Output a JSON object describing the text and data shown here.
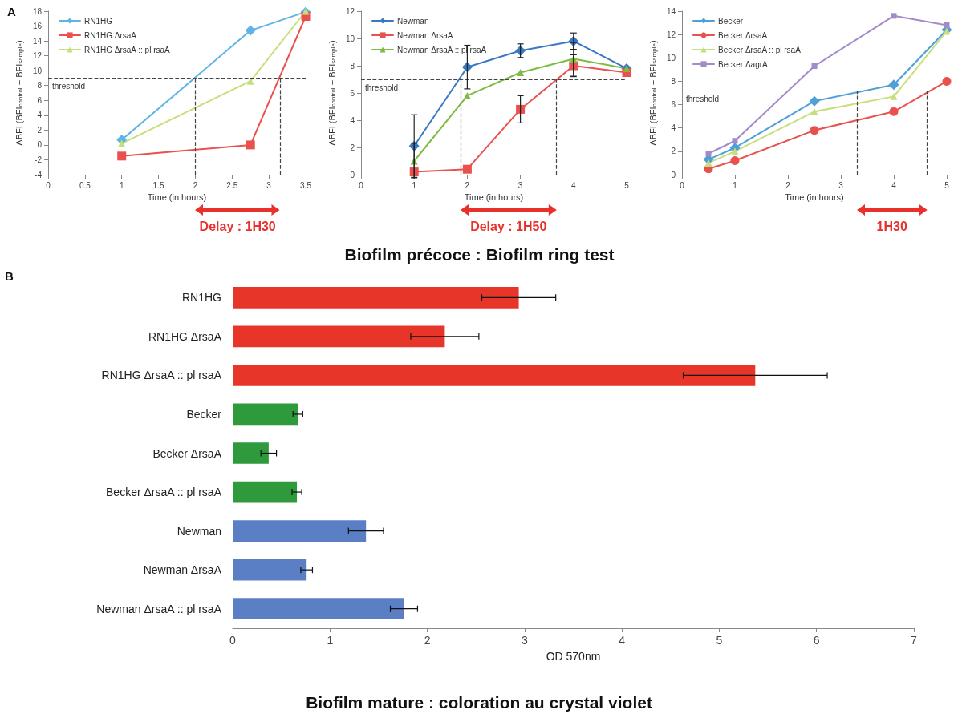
{
  "chart_data": [
    {
      "type": "line",
      "title": "A",
      "xlabel": "Time (in hours)",
      "ylabel": "ΔBFI (BFI$_{control}$ − BFI$_{sample}$)",
      "x": [
        1,
        2.75,
        3.5
      ],
      "series": [
        {
          "name": "RN1HG",
          "color": "#5fb4e6",
          "marker": "diamond",
          "values": [
            0.7,
            15.4,
            17.9
          ]
        },
        {
          "name": "RN1HG ΔrsaA",
          "color": "#e8514d",
          "marker": "square",
          "values": [
            -1.5,
            0,
            17.3
          ]
        },
        {
          "name": "RN1HG ΔrsaA :: pl rsaA",
          "color": "#c6df7a",
          "marker": "triangle",
          "values": [
            0.2,
            8.6,
            18
          ]
        }
      ],
      "xlim": [
        0,
        3.5
      ],
      "xticks": [
        0,
        0.5,
        1,
        1.5,
        2,
        2.5,
        3,
        3.5
      ],
      "ylim": [
        -4,
        18
      ],
      "yticks": [
        -4,
        -2,
        0,
        2,
        4,
        6,
        8,
        10,
        12,
        14,
        16,
        18
      ],
      "ref_lines": [
        {
          "axis": "y",
          "value": 9,
          "label": "threshold",
          "line_style": "dashed"
        },
        {
          "axis": "x",
          "value": 2,
          "line_style": "dashed"
        },
        {
          "axis": "x",
          "value": 3.15,
          "line_style": "dashed"
        }
      ],
      "annotations": [
        "Delay : 1H30"
      ],
      "legend": "top left"
    },
    {
      "type": "line",
      "title": "Biofilm précoce : Biofilm ring test",
      "xlabel": "Time (in hours)",
      "ylabel": "ΔBFI (BFI$_{control}$ − BFI$_{sample}$)",
      "x": [
        1,
        2,
        3,
        4,
        5
      ],
      "series": [
        {
          "name": "Newman",
          "color": "#3a78c2",
          "marker": "diamond",
          "values": [
            2.1,
            7.9,
            9.1,
            9.8,
            7.8
          ],
          "errors": [
            2.3,
            1.6,
            0.5,
            0.6,
            null
          ]
        },
        {
          "name": "Newman ΔrsaA",
          "color": "#e8514d",
          "marker": "square",
          "values": [
            0.2,
            0.4,
            4.8,
            8.0,
            7.5
          ],
          "errors": [
            null,
            null,
            1.0,
            0.8,
            null
          ]
        },
        {
          "name": "Newman ΔrsaA :: pl rsaA",
          "color": "#7dbb42",
          "marker": "triangle",
          "values": [
            1.0,
            5.8,
            7.5,
            8.5,
            7.8
          ],
          "errors": [
            1.3,
            null,
            null,
            1.2,
            null
          ]
        }
      ],
      "xlim": [
        0,
        5
      ],
      "xticks": [
        0,
        1,
        2,
        3,
        4,
        5
      ],
      "ylim": [
        0,
        12
      ],
      "yticks": [
        0,
        2,
        4,
        6,
        8,
        10,
        12
      ],
      "ref_lines": [
        {
          "axis": "y",
          "value": 7,
          "label": "threshold",
          "line_style": "dashed"
        },
        {
          "axis": "x",
          "value": 1.87,
          "line_style": "dashed"
        },
        {
          "axis": "x",
          "value": 3.68,
          "line_style": "dashed"
        }
      ],
      "annotations": [
        "Delay : 1H50"
      ],
      "legend": "top left"
    },
    {
      "type": "line",
      "xlabel": "Time (in hours)",
      "ylabel": "ΔBFI (BFI$_{control}$ − BFI$_{sample}$)",
      "x": [
        0.5,
        1,
        2.5,
        4,
        5
      ],
      "series": [
        {
          "name": "Becker",
          "color": "#4f9fd8",
          "marker": "diamond",
          "values": [
            1.3,
            2.3,
            6.3,
            7.7,
            12.4
          ]
        },
        {
          "name": "Becker ΔrsaA",
          "color": "#e8514d",
          "marker": "circle",
          "values": [
            0.5,
            1.2,
            3.8,
            5.4,
            8.0
          ]
        },
        {
          "name": "Becker ΔrsaA :: pl rsaA",
          "color": "#c6df7a",
          "marker": "triangle",
          "values": [
            1.0,
            2.0,
            5.4,
            6.7,
            12.3
          ]
        },
        {
          "name": "Becker ΔagrA",
          "color": "#a38ac8",
          "marker": "square",
          "values": [
            1.8,
            2.9,
            9.3,
            13.6,
            12.8
          ]
        }
      ],
      "xlim": [
        0,
        5
      ],
      "xticks": [
        0,
        1,
        2,
        3,
        4,
        5
      ],
      "ylim": [
        0,
        14
      ],
      "yticks": [
        0,
        2,
        4,
        6,
        8,
        10,
        12,
        14
      ],
      "ref_lines": [
        {
          "axis": "y",
          "value": 7.2,
          "label": "threshold",
          "line_style": "dashed"
        },
        {
          "axis": "x",
          "value": 3.3,
          "line_style": "dashed"
        },
        {
          "axis": "x",
          "value": 4.63,
          "line_style": "dashed"
        }
      ],
      "annotations": [
        "1H30"
      ],
      "legend": "top left"
    },
    {
      "type": "bar",
      "orientation": "horizontal",
      "title": "Biofilm mature : coloration au crystal violet",
      "xlabel": "OD 570nm",
      "categories": [
        "RN1HG",
        "RN1HG ΔrsaA",
        "RN1HG ΔrsaA :: pl rsaA",
        "Becker",
        "Becker ΔrsaA",
        "Becker ΔrsaA :: pl rsaA",
        "Newman",
        "Newman ΔrsaA",
        "Newman ΔrsaA :: pl rsaA"
      ],
      "values": [
        2.94,
        2.18,
        5.37,
        0.67,
        0.37,
        0.66,
        1.37,
        0.76,
        1.76
      ],
      "errors": [
        0.38,
        0.35,
        0.74,
        0.05,
        0.08,
        0.05,
        0.18,
        0.06,
        0.14
      ],
      "colors": [
        "#e8352a",
        "#e8352a",
        "#e8352a",
        "#2e9a3c",
        "#2e9a3c",
        "#2e9a3c",
        "#5b7fc4",
        "#5b7fc4",
        "#5b7fc4"
      ],
      "xlim": [
        0,
        7
      ],
      "xticks": [
        0,
        1,
        2,
        3,
        4,
        5,
        6,
        7
      ],
      "annotations": [
        "B"
      ]
    }
  ]
}
